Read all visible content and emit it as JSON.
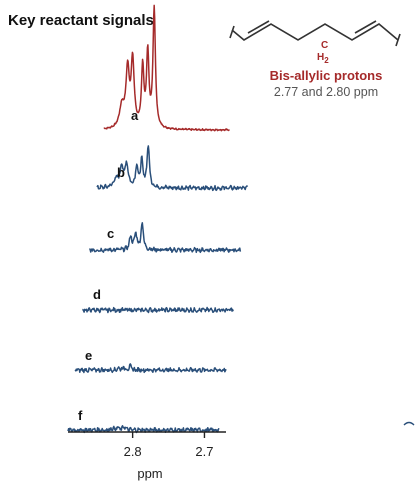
{
  "title": "Key reactant signals",
  "structure": {
    "carbon_label": "C",
    "hydrogen_label": "H",
    "hydrogen_subscript": "2"
  },
  "annotation": {
    "title": "Bis-allylic protons",
    "subtitle": "2.77 and 2.80 ppm"
  },
  "colors": {
    "reactant": "#a52a2a",
    "product": "#2a4f7a",
    "axis": "#222222",
    "structure": "#333333"
  },
  "chart_data": {
    "type": "line",
    "title": "Key reactant signals",
    "xlabel": "ppm",
    "x_axis_reversed": true,
    "xlim": [
      2.89,
      2.67
    ],
    "xticks": [
      2.8,
      2.7
    ],
    "xtick_labels": [
      "2.8",
      "2.7"
    ],
    "series": [
      {
        "label": "a",
        "color": "#a52a2a",
        "x_range": [
          2.84,
          2.665
        ],
        "relative_intensity": 1.0,
        "has_shoulder": true
      },
      {
        "label": "b",
        "color": "#2a4f7a",
        "x_range": [
          2.85,
          2.64
        ],
        "relative_intensity": 0.35,
        "has_shoulder": true
      },
      {
        "label": "c",
        "color": "#2a4f7a",
        "x_range": [
          2.86,
          2.65
        ],
        "relative_intensity": 0.22,
        "has_shoulder": false
      },
      {
        "label": "d",
        "color": "#2a4f7a",
        "x_range": [
          2.87,
          2.66
        ],
        "relative_intensity": 0.0,
        "has_shoulder": false
      },
      {
        "label": "e",
        "color": "#2a4f7a",
        "x_range": [
          2.88,
          2.67
        ],
        "relative_intensity": 0.03,
        "has_shoulder": false
      },
      {
        "label": "f",
        "color": "#2a4f7a",
        "x_range": [
          2.89,
          2.68
        ],
        "relative_intensity": 0.03,
        "has_shoulder": false
      }
    ]
  }
}
